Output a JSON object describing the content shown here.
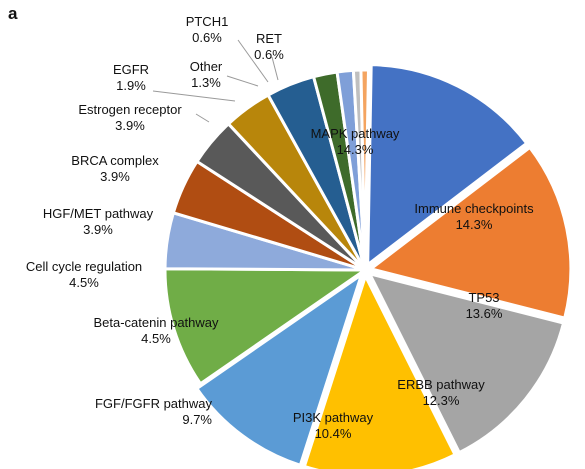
{
  "panel_label": "a",
  "chart_data": {
    "type": "pie",
    "title": "",
    "start_angle_deg": 1,
    "slices": [
      {
        "name": "MAPK pathway",
        "value": 14.3,
        "label": "14.3%",
        "color": "#4472c4"
      },
      {
        "name": "Immune checkpoints",
        "value": 14.3,
        "label": "14.3%",
        "color": "#ed7d31"
      },
      {
        "name": "TP53",
        "value": 13.6,
        "label": "13.6%",
        "color": "#a5a5a5"
      },
      {
        "name": "ERBB pathway",
        "value": 12.3,
        "label": "12.3%",
        "color": "#ffc000"
      },
      {
        "name": "PI3K pathway",
        "value": 10.4,
        "label": "10.4%",
        "color": "#5b9bd5"
      },
      {
        "name": "FGF/FGFR pathway",
        "value": 9.7,
        "label": "9.7%",
        "color": "#70ad47"
      },
      {
        "name": "Beta-catenin pathway",
        "value": 4.5,
        "label": "4.5%",
        "color": "#8eaadb"
      },
      {
        "name": "Cell cycle regulation",
        "value": 4.5,
        "label": "4.5%",
        "color": "#b04d12"
      },
      {
        "name": "HGF/MET pathway",
        "value": 3.9,
        "label": "3.9%",
        "color": "#595959"
      },
      {
        "name": "BRCA complex",
        "value": 3.9,
        "label": "3.9%",
        "color": "#b8860b"
      },
      {
        "name": "Estrogen receptor",
        "value": 3.9,
        "label": "3.9%",
        "color": "#255e91"
      },
      {
        "name": "EGFR",
        "value": 1.9,
        "label": "1.9%",
        "color": "#3e6b2a"
      },
      {
        "name": "Other",
        "value": 1.3,
        "label": "1.3%",
        "color": "#7f9fd8"
      },
      {
        "name": "PTCH1",
        "value": 0.6,
        "label": "0.6%",
        "color": "#bfbfbf"
      },
      {
        "name": "RET",
        "value": 0.6,
        "label": "0.6%",
        "color": "#f4a460"
      }
    ]
  }
}
